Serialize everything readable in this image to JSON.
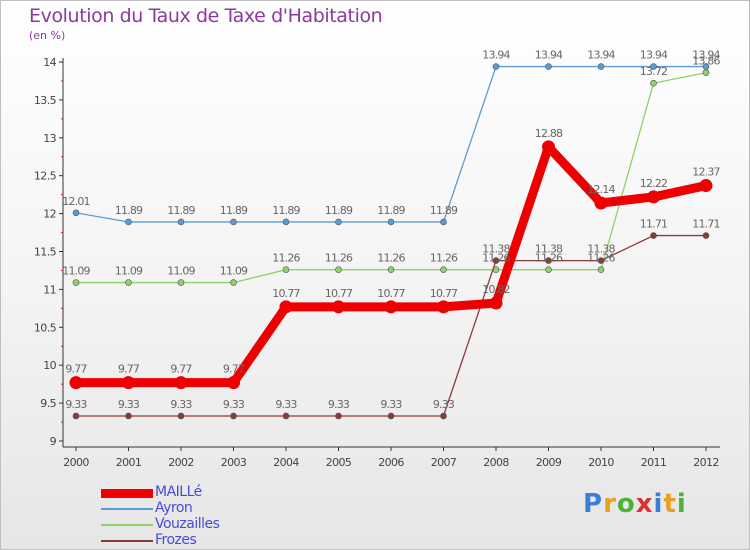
{
  "header": {
    "title": "Evolution du Taux de Taxe d'Habitation",
    "subtitle": "(en %)"
  },
  "logo": {
    "text": "Proxiti",
    "letters": [
      "P",
      "r",
      "o",
      "x",
      "i",
      "t",
      "i"
    ],
    "colors": [
      "#3a7fd5",
      "#e8a020",
      "#4bb33a",
      "#e03030",
      "#3a7fd5",
      "#e8a020",
      "#4bb33a"
    ]
  },
  "chart_data": {
    "type": "line",
    "title": "Evolution du Taux de Taxe d'Habitation",
    "ylabel": "(en %)",
    "xlabel": "",
    "categories": [
      "2000",
      "2001",
      "2002",
      "2003",
      "2004",
      "2005",
      "2006",
      "2007",
      "2008",
      "2009",
      "2010",
      "2011",
      "2012"
    ],
    "ylim": [
      9,
      14
    ],
    "yticks": [
      9,
      9.5,
      10,
      10.5,
      11,
      11.5,
      12,
      12.5,
      13,
      13.5,
      14
    ],
    "ytick_labels": [
      "9",
      "9.5",
      "10",
      "10.5",
      "11",
      "11.5",
      "12",
      "12.5",
      "13",
      "13.5",
      "14"
    ],
    "grid": false,
    "legend": "bottom-left",
    "series": [
      {
        "name": "Ayron",
        "color": "#5b9bd5",
        "values": [
          12.01,
          11.89,
          11.89,
          11.89,
          11.89,
          11.89,
          11.89,
          11.89,
          13.94,
          13.94,
          13.94,
          13.94,
          13.94
        ],
        "labels": [
          "12.01",
          "11.89",
          "11.89",
          "11.89",
          "11.89",
          "11.89",
          "11.89",
          "11.89",
          "13.94",
          "13.94",
          "13.94",
          "13.94",
          "13.94"
        ]
      },
      {
        "name": "Vouzailles",
        "color": "#8fd16a",
        "values": [
          11.09,
          11.09,
          11.09,
          11.09,
          11.26,
          11.26,
          11.26,
          11.26,
          11.26,
          11.26,
          11.26,
          13.72,
          13.86
        ],
        "labels": [
          "11.09",
          "11.09",
          "11.09",
          "11.09",
          "11.26",
          "11.26",
          "11.26",
          "11.26",
          "11.26",
          "11.26",
          "11.26",
          "13.72",
          "13.86"
        ]
      },
      {
        "name": "Frozes",
        "color": "#8b3a3a",
        "values": [
          9.33,
          9.33,
          9.33,
          9.33,
          9.33,
          9.33,
          9.33,
          9.33,
          11.38,
          11.38,
          11.38,
          11.71,
          11.71
        ],
        "labels": [
          "9.33",
          "9.33",
          "9.33",
          "9.33",
          "9.33",
          "9.33",
          "9.33",
          "9.33",
          "11.38",
          "11.38",
          "11.38",
          "11.71",
          "11.71"
        ]
      },
      {
        "name": "MAILLé",
        "color": "#ee0000",
        "values": [
          9.77,
          9.77,
          9.77,
          9.77,
          10.77,
          10.77,
          10.77,
          10.77,
          10.82,
          12.88,
          12.14,
          12.22,
          12.37
        ],
        "labels": [
          "9.77",
          "9.77",
          "9.77",
          "9.77",
          "10.77",
          "10.77",
          "10.77",
          "10.77",
          "10.82",
          "12.88",
          "12.14",
          "12.22",
          "12.37"
        ]
      }
    ],
    "legend_entries": [
      {
        "name": "MAILLé",
        "color": "#ee0000",
        "weight": "thick"
      },
      {
        "name": "Ayron",
        "color": "#5b9bd5",
        "weight": "thin"
      },
      {
        "name": "Vouzailles",
        "color": "#8fd16a",
        "weight": "thin"
      },
      {
        "name": "Frozes",
        "color": "#8b3a3a",
        "weight": "thin"
      }
    ]
  }
}
